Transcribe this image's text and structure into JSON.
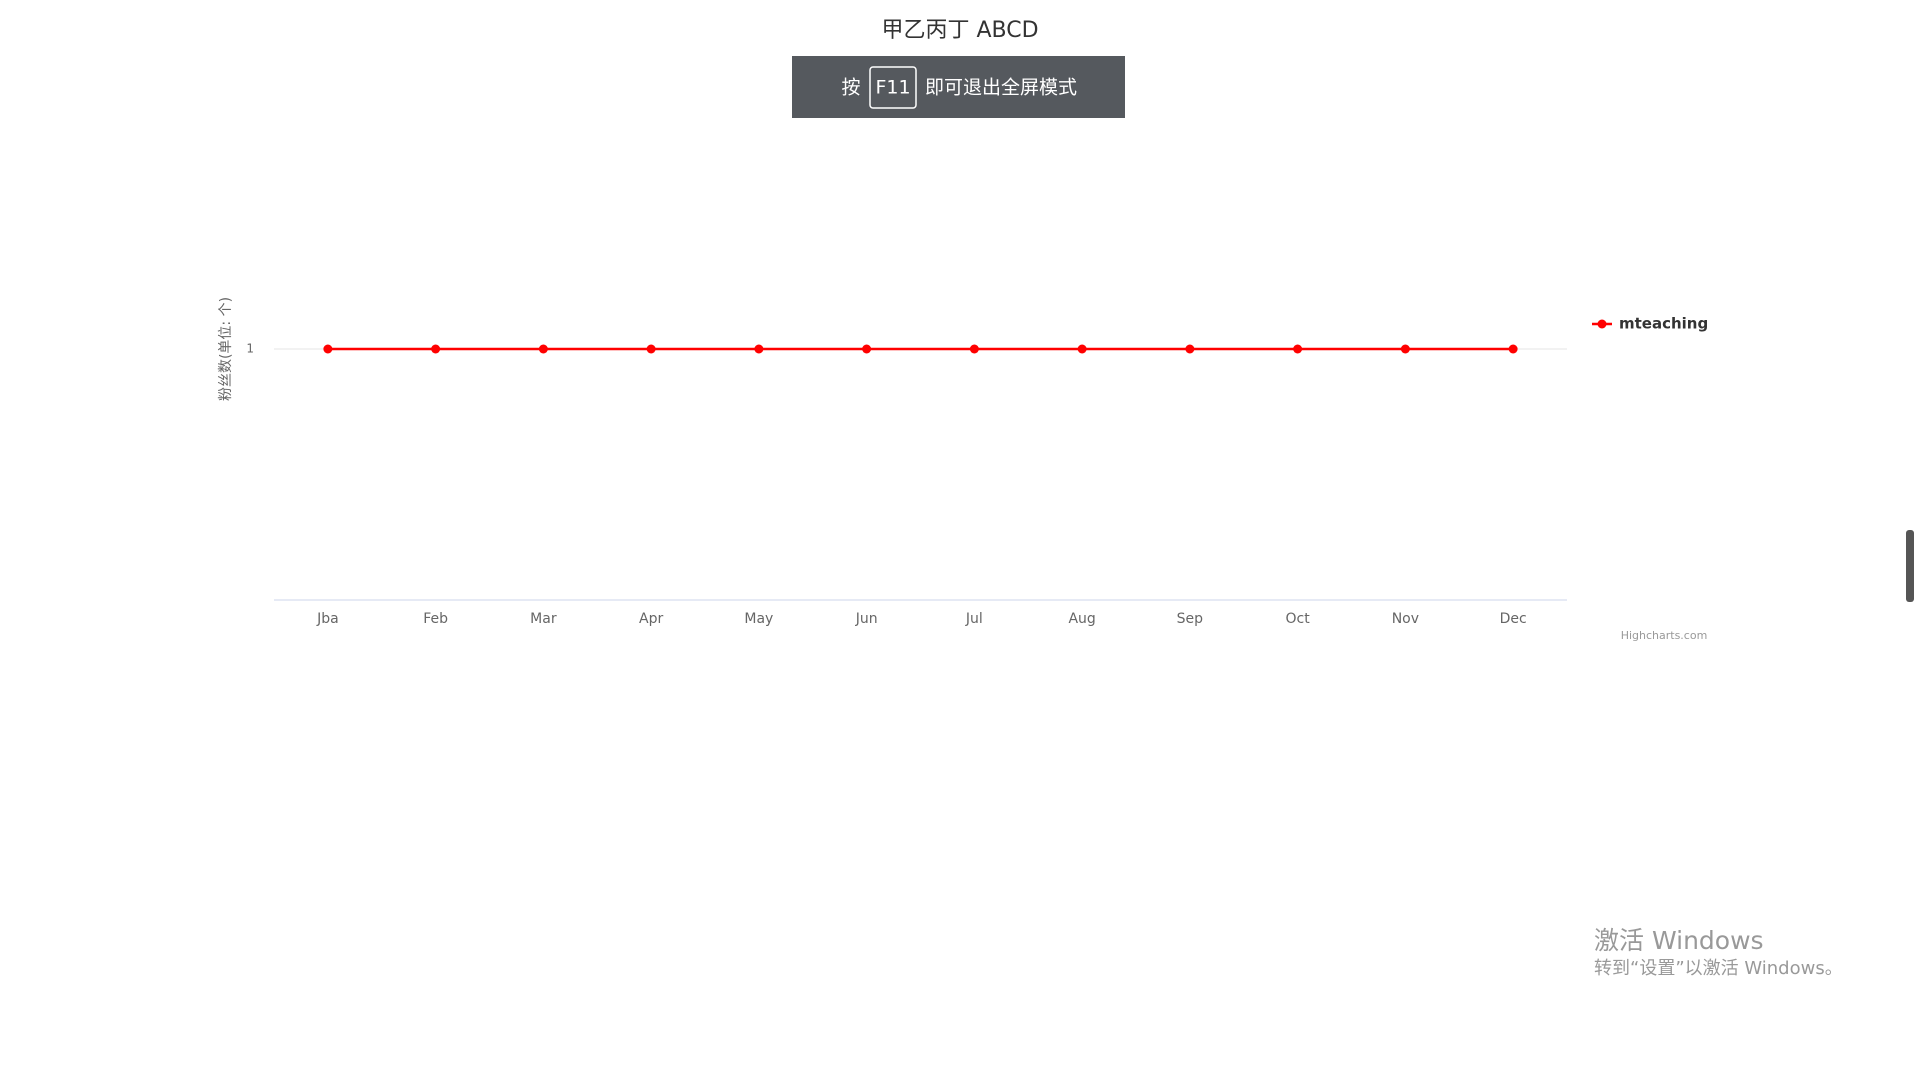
{
  "chart_data": {
    "type": "line",
    "title": "甲乙丙丁 ABCD",
    "y_axis_label": "粉丝数(单位: 个)",
    "categories": [
      "Jba",
      "Feb",
      "Mar",
      "Apr",
      "May",
      "Jun",
      "Jul",
      "Aug",
      "Sep",
      "Oct",
      "Nov",
      "Dec"
    ],
    "series": [
      {
        "name": "mteaching",
        "color": "#ff0000",
        "values": [
          1,
          1,
          1,
          1,
          1,
          1,
          1,
          1,
          1,
          1,
          1,
          1
        ]
      }
    ],
    "ylim": [
      0,
      2
    ],
    "yticks": [
      1
    ],
    "grid": true,
    "legend": "right",
    "credits": "Highcharts.com"
  },
  "overlay": {
    "before": "按",
    "key": "F11",
    "after": "即可退出全屏模式"
  },
  "watermark": {
    "title": "激活 Windows",
    "subtitle": "转到“设置”以激活 Windows。"
  }
}
